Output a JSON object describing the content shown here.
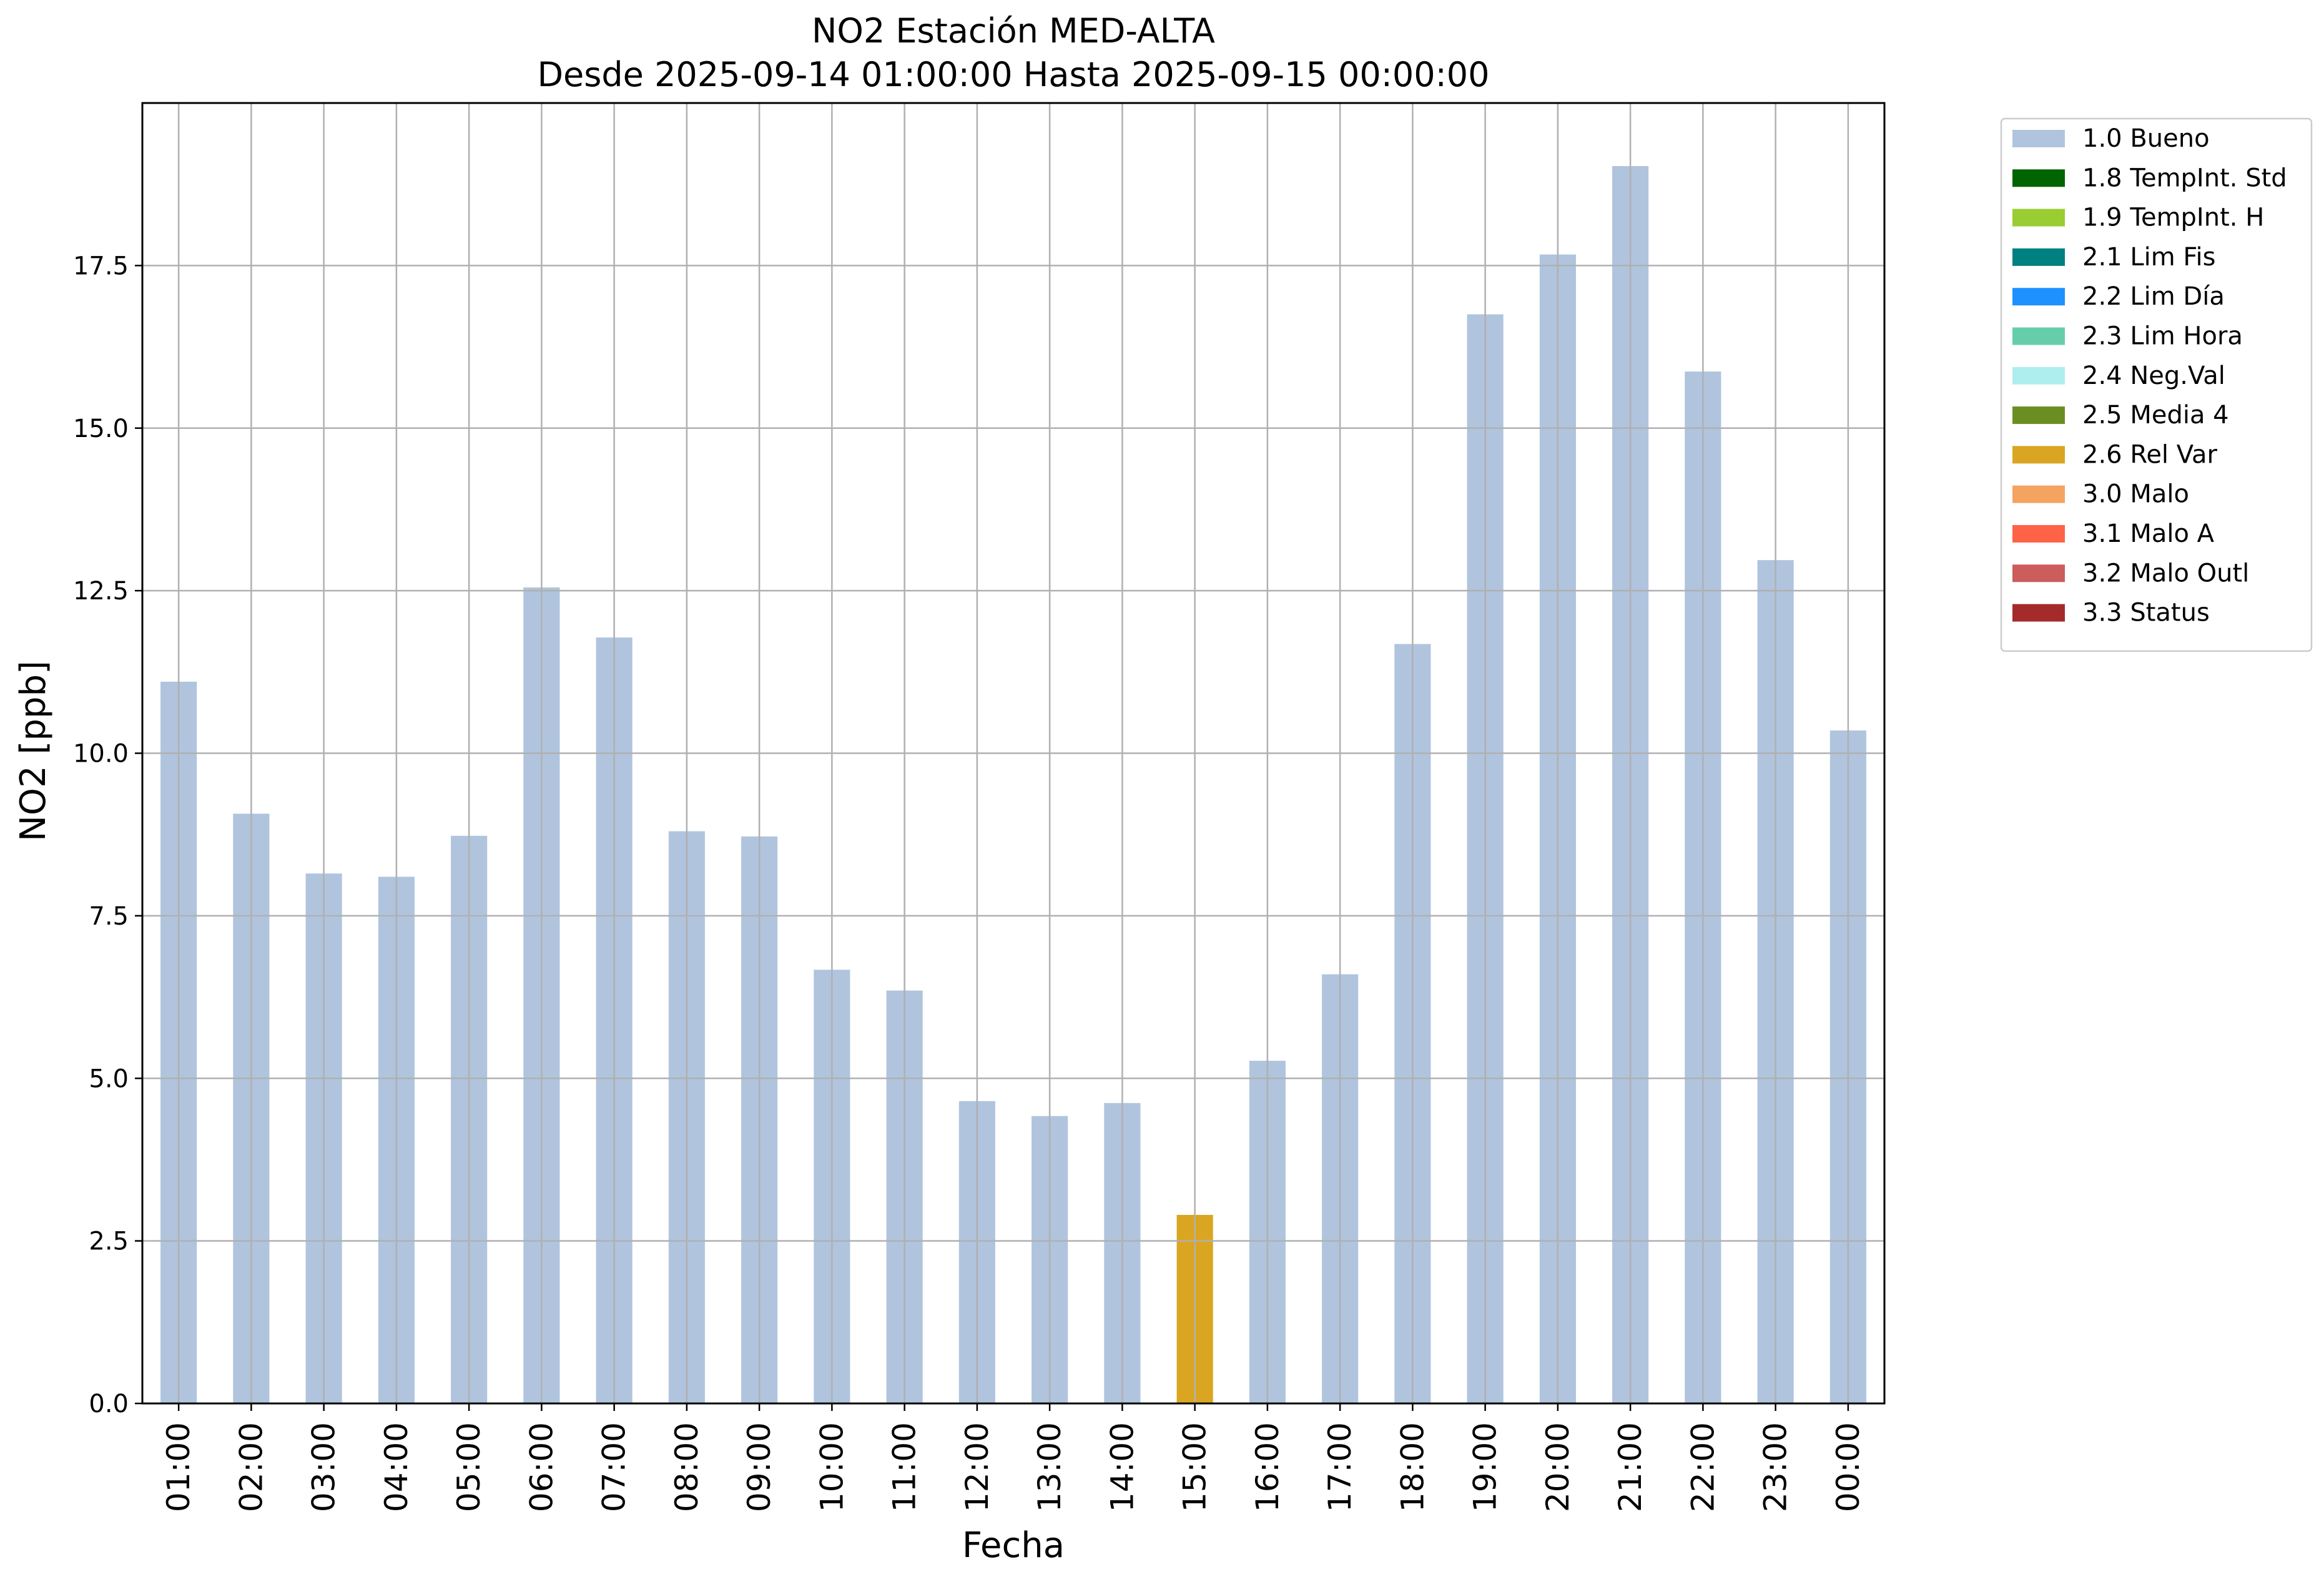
{
  "chart_data": {
    "type": "bar",
    "title": "NO2 Estación MED-ALTA",
    "subtitle": "Desde 2025-09-14 01:00:00 Hasta 2025-09-15 00:00:00",
    "xlabel": "Fecha",
    "ylabel": "NO2 [ppb]",
    "ylim": [
      0,
      20
    ],
    "yticks": [
      "0.0",
      "2.5",
      "5.0",
      "7.5",
      "10.0",
      "12.5",
      "15.0",
      "17.5"
    ],
    "grid": true,
    "legend_position": "outside-top-right",
    "categories": [
      "01:00",
      "02:00",
      "03:00",
      "04:00",
      "05:00",
      "06:00",
      "07:00",
      "08:00",
      "09:00",
      "10:00",
      "11:00",
      "12:00",
      "13:00",
      "14:00",
      "15:00",
      "16:00",
      "17:00",
      "18:00",
      "19:00",
      "20:00",
      "21:00",
      "22:00",
      "23:00",
      "00:00"
    ],
    "values": [
      11.1,
      9.07,
      8.15,
      8.1,
      8.73,
      12.55,
      11.78,
      8.8,
      8.72,
      6.67,
      6.35,
      4.65,
      4.42,
      4.62,
      2.9,
      5.27,
      6.6,
      11.68,
      16.75,
      17.67,
      19.03,
      15.87,
      12.97,
      10.35
    ],
    "flags": [
      "1.0 Bueno",
      "1.0 Bueno",
      "1.0 Bueno",
      "1.0 Bueno",
      "1.0 Bueno",
      "1.0 Bueno",
      "1.0 Bueno",
      "1.0 Bueno",
      "1.0 Bueno",
      "1.0 Bueno",
      "1.0 Bueno",
      "1.0 Bueno",
      "1.0 Bueno",
      "1.0 Bueno",
      "2.6 Rel Var",
      "1.0 Bueno",
      "1.0 Bueno",
      "1.0 Bueno",
      "1.0 Bueno",
      "1.0 Bueno",
      "1.0 Bueno",
      "1.0 Bueno",
      "1.0 Bueno",
      "1.0 Bueno"
    ],
    "legend": [
      {
        "label": "1.0 Bueno",
        "color": "#b0c4de"
      },
      {
        "label": "1.8 TempInt. Std",
        "color": "#006400"
      },
      {
        "label": "1.9 TempInt. H",
        "color": "#9acd32"
      },
      {
        "label": "2.1 Lim Fis",
        "color": "#008080"
      },
      {
        "label": "2.2 Lim Día",
        "color": "#1e90ff"
      },
      {
        "label": "2.3 Lim Hora",
        "color": "#66cdaa"
      },
      {
        "label": "2.4 Neg.Val",
        "color": "#afeeee"
      },
      {
        "label": "2.5 Media 4",
        "color": "#6b8e23"
      },
      {
        "label": "2.6 Rel Var",
        "color": "#daa520"
      },
      {
        "label": "3.0 Malo",
        "color": "#f4a460"
      },
      {
        "label": "3.1 Malo A",
        "color": "#ff6347"
      },
      {
        "label": "3.2 Malo Outl",
        "color": "#cd5c5c"
      },
      {
        "label": "3.3 Status",
        "color": "#a52a2a"
      }
    ]
  }
}
